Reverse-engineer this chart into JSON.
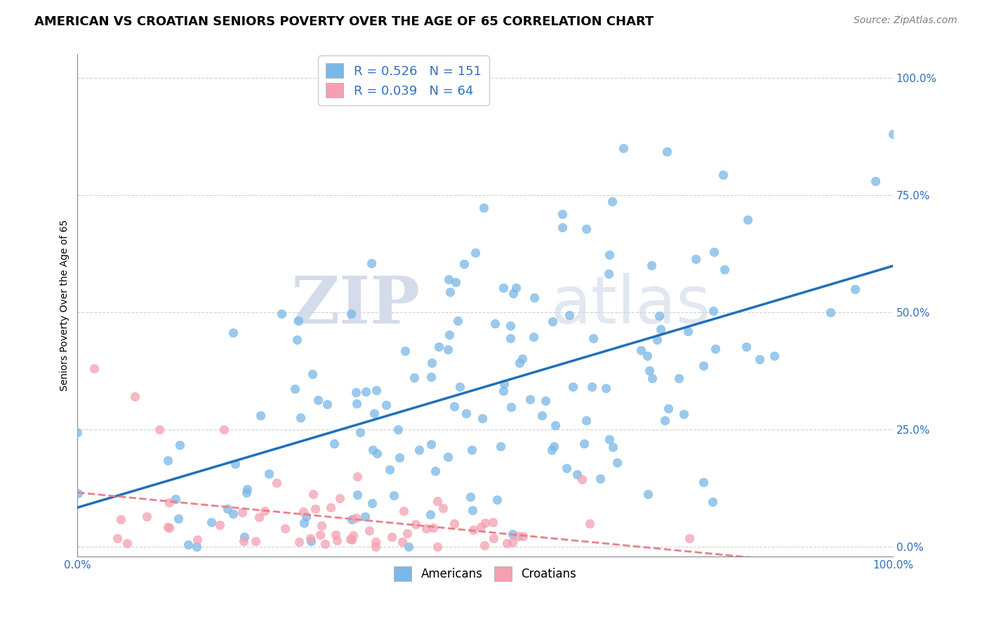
{
  "title": "AMERICAN VS CROATIAN SENIORS POVERTY OVER THE AGE OF 65 CORRELATION CHART",
  "source": "Source: ZipAtlas.com",
  "ylabel": "Seniors Poverty Over the Age of 65",
  "xlim": [
    0,
    1
  ],
  "ylim": [
    -0.02,
    1.05
  ],
  "yticks": [
    0.0,
    0.25,
    0.5,
    0.75,
    1.0
  ],
  "ytick_labels": [
    "0.0%",
    "25.0%",
    "50.0%",
    "75.0%",
    "100.0%"
  ],
  "xtick_labels": [
    "0.0%",
    "100.0%"
  ],
  "american_color": "#7ab8e8",
  "croatian_color": "#f5a0b0",
  "american_R": 0.526,
  "american_N": 151,
  "croatian_R": 0.039,
  "croatian_N": 64,
  "legend_label_american": "Americans",
  "legend_label_croatian": "Croatians",
  "watermark_zip": "ZIP",
  "watermark_atlas": "atlas",
  "background_color": "#ffffff",
  "grid_color": "#cccccc",
  "title_fontsize": 13,
  "source_fontsize": 10,
  "axis_label_fontsize": 10,
  "tick_fontsize": 11,
  "legend_fontsize": 13,
  "scatter_alpha": 0.75,
  "scatter_size": 80,
  "american_line_color": "#1f6fba",
  "croatian_line_color": "#e8808a",
  "text_blue": "#3070c0",
  "seed": 7
}
